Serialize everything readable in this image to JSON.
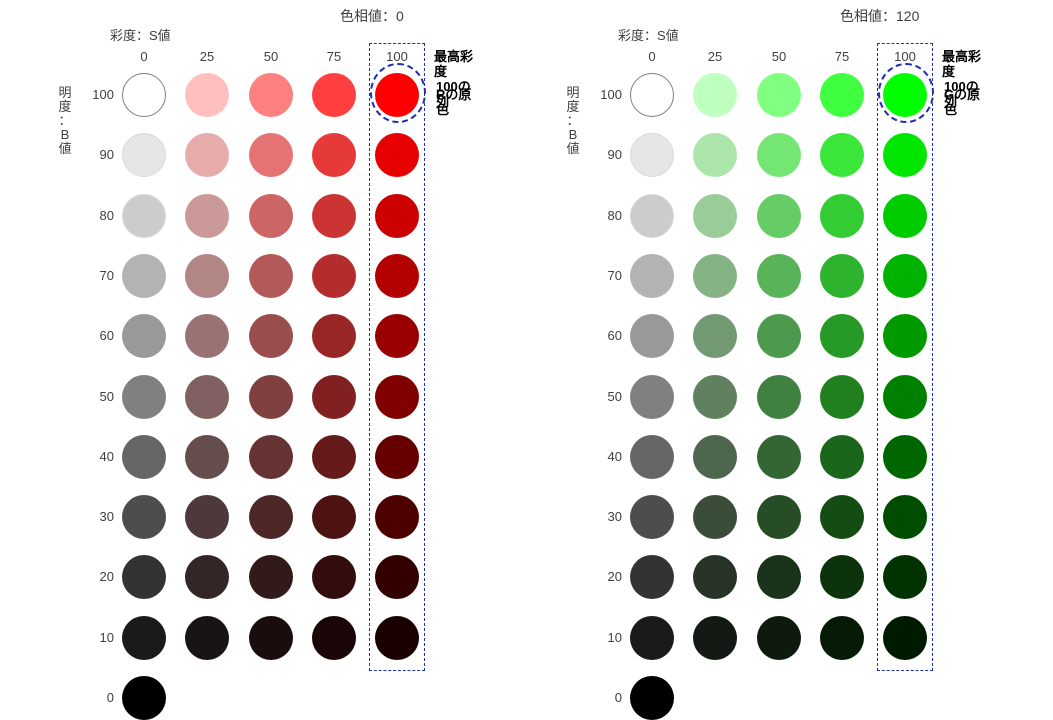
{
  "panels": [
    {
      "hue_label": "色相値：0",
      "s_axis_label": "彩度：S値",
      "b_axis_label": [
        "明",
        "度",
        "：",
        "B",
        "値"
      ],
      "columns": [
        "0",
        "25",
        "50",
        "75",
        "100"
      ],
      "rows": [
        "100",
        "90",
        "80",
        "70",
        "60",
        "50",
        "40",
        "30",
        "20",
        "10",
        "0"
      ],
      "note_line1": "最高彩度",
      "note_line2": "100の列",
      "primary_label": "Rの原色",
      "colors": [
        [
          "#ffffff",
          "#ffbfbf",
          "#ff8080",
          "#ff4040",
          "#ff0000"
        ],
        [
          "#e6e6e6",
          "#e6acac",
          "#e67373",
          "#e63939",
          "#e60000"
        ],
        [
          "#cccccc",
          "#cc9999",
          "#cc6666",
          "#cc3333",
          "#cc0000"
        ],
        [
          "#b3b3b3",
          "#b38686",
          "#b35959",
          "#b32d2d",
          "#b30000"
        ],
        [
          "#999999",
          "#997373",
          "#994d4d",
          "#992626",
          "#990000"
        ],
        [
          "#808080",
          "#806060",
          "#804040",
          "#802020",
          "#800000"
        ],
        [
          "#666666",
          "#664d4d",
          "#663333",
          "#661a1a",
          "#660000"
        ],
        [
          "#4d4d4d",
          "#4d3939",
          "#4d2626",
          "#4d1313",
          "#4d0000"
        ],
        [
          "#333333",
          "#332626",
          "#331a1a",
          "#330d0d",
          "#330000"
        ],
        [
          "#1a1a1a",
          "#1a1313",
          "#1a0d0d",
          "#1a0606",
          "#1a0000"
        ],
        [
          "#000000"
        ]
      ]
    },
    {
      "hue_label": "色相値：120",
      "s_axis_label": "彩度：S値",
      "b_axis_label": [
        "明",
        "度",
        "：",
        "B",
        "値"
      ],
      "columns": [
        "0",
        "25",
        "50",
        "75",
        "100"
      ],
      "rows": [
        "100",
        "90",
        "80",
        "70",
        "60",
        "50",
        "40",
        "30",
        "20",
        "10",
        "0"
      ],
      "note_line1": "最高彩度",
      "note_line2": "100の列",
      "primary_label": "Gの原色",
      "colors": [
        [
          "#ffffff",
          "#bfffbf",
          "#80ff80",
          "#40ff40",
          "#00ff00"
        ],
        [
          "#e6e6e6",
          "#ace6ac",
          "#73e673",
          "#39e639",
          "#00e600"
        ],
        [
          "#cccccc",
          "#99cc99",
          "#66cc66",
          "#33cc33",
          "#00cc00"
        ],
        [
          "#b3b3b3",
          "#86b386",
          "#59b359",
          "#2db32d",
          "#00b300"
        ],
        [
          "#999999",
          "#739973",
          "#4d994d",
          "#269926",
          "#009900"
        ],
        [
          "#808080",
          "#608060",
          "#408040",
          "#208020",
          "#008000"
        ],
        [
          "#666666",
          "#4d664d",
          "#336633",
          "#1a661a",
          "#006600"
        ],
        [
          "#4d4d4d",
          "#394d39",
          "#264d26",
          "#134d13",
          "#004d00"
        ],
        [
          "#333333",
          "#263326",
          "#1a331a",
          "#0d330d",
          "#003300"
        ],
        [
          "#1a1a1a",
          "#131a13",
          "#0d1a0d",
          "#061a06",
          "#001a00"
        ],
        [
          "#000000"
        ]
      ]
    }
  ]
}
